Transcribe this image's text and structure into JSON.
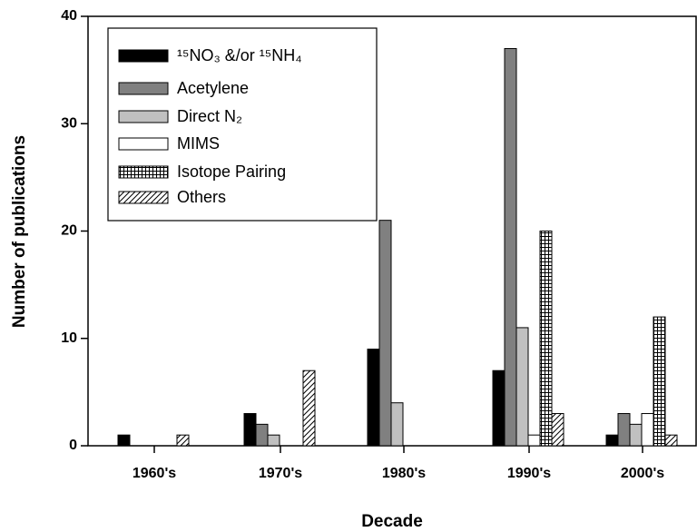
{
  "chart_data": {
    "type": "bar",
    "xlabel": "Decade",
    "ylabel": "Number of publications",
    "categories": [
      "1960's",
      "1970's",
      "1980's",
      "1990's",
      "2000's"
    ],
    "series": [
      {
        "name": "¹⁵NO₃ &/or ¹⁵NH₄",
        "color": "#000000",
        "values": [
          1,
          3,
          9,
          7,
          1
        ]
      },
      {
        "name": "Acetylene",
        "color": "#808080",
        "values": [
          0,
          2,
          21,
          37,
          3
        ]
      },
      {
        "name": "Direct N₂",
        "color": "#c0c0c0",
        "values": [
          0,
          1,
          4,
          11,
          2
        ]
      },
      {
        "name": "MIMS",
        "color": "#ffffff",
        "values": [
          0,
          0,
          0,
          1,
          3
        ]
      },
      {
        "name": "Isotope Pairing",
        "color": "#ffffff",
        "pattern": "grid",
        "values": [
          0,
          0,
          0,
          20,
          12
        ]
      },
      {
        "name": "Others",
        "color": "#ffffff",
        "pattern": "diagonal",
        "values": [
          1,
          7,
          0,
          3,
          1
        ]
      }
    ],
    "ylim": [
      0,
      40
    ],
    "yticks": [
      0,
      10,
      20,
      30,
      40
    ],
    "legend": "upper left"
  }
}
